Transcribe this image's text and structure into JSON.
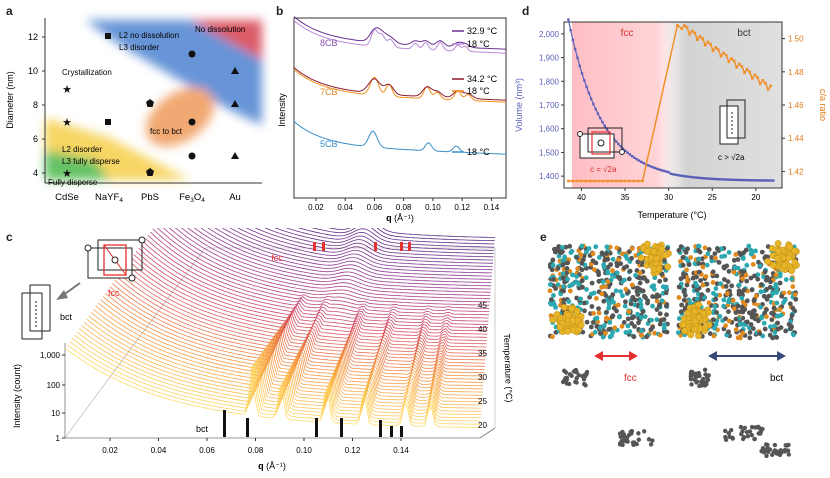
{
  "panel_a": {
    "label": "a",
    "ylabel": "Diameter (nm)",
    "yticks": [
      "12",
      "10",
      "8",
      "6",
      "4"
    ],
    "xticks": [
      "CdSe",
      "NaYF",
      "PbS",
      "Fe",
      "Au"
    ],
    "xtick_sub": {
      "NaYF": "4",
      "Fe": "3"
    },
    "fe_suffix": "O",
    "fe_suffix_sub": "4",
    "regions": {
      "no_dissolution": "No dissolution",
      "l2_no_dissolution_1": "L2 no dissolution",
      "l2_no_dissolution_2": "L3 disorder",
      "crystallization": "Crystallization",
      "fcc_to_bct": "fcc to bct",
      "l2_disorder_1": "L2 disorder",
      "l2_disorder_2": "L3 fully disperse",
      "fully_disperse": "Fully disperse"
    }
  },
  "panel_b": {
    "label": "b",
    "ylabel": "Intensity",
    "xlabel_bold": "q",
    "xlabel_rest": " (Å⁻¹)",
    "xticks": [
      "0.02",
      "0.04",
      "0.06",
      "0.08",
      "0.10",
      "0.12",
      "0.14"
    ],
    "samples": [
      "8CB",
      "7CB",
      "5CB"
    ],
    "legend": [
      "32.9 °C",
      "18 °C",
      "34.2 °C",
      "18 °C",
      "18 °C"
    ]
  },
  "panel_c": {
    "label": "c",
    "fcc_top": "fcc",
    "fcc_label": "fcc",
    "bct_label": "bct",
    "bct_bottom": "bct",
    "ylabel": "Intensity (count)",
    "yticks": [
      "1,000",
      "100",
      "10",
      "1"
    ],
    "xticks": [
      "0.02",
      "0.04",
      "0.06",
      "0.08",
      "0.10",
      "0.12",
      "0.14"
    ],
    "xlabel_bold": "q",
    "xlabel_rest": " (Å⁻¹)",
    "zlabel": "Temperature (°C)",
    "zticks": [
      "45",
      "40",
      "35",
      "30",
      "25",
      "20"
    ]
  },
  "panel_d": {
    "label": "d",
    "ylabel": "Volume (nm³)",
    "y2label": "c/a ratio",
    "yticks": [
      "2,000",
      "1,900",
      "1,800",
      "1,700",
      "1,600",
      "1,500",
      "1,400"
    ],
    "y2ticks": [
      "1.50",
      "1.48",
      "1.46",
      "1.44",
      "1.42"
    ],
    "xticks": [
      "40",
      "35",
      "30",
      "25",
      "20"
    ],
    "xlabel": "Temperature (°C)",
    "fcc": "fcc",
    "bct": "bct",
    "fcc_eq": "c = √2a",
    "bct_eq": "c > √2a"
  },
  "panel_e": {
    "label": "e",
    "fcc": "fcc",
    "bct": "bct"
  },
  "colors": {
    "purple": "#8a4fb0",
    "darkred": "#8b1a2b",
    "orange": "#f0901e",
    "blue": "#3a8fc8",
    "volume": "#5a5fb8",
    "ratio": "#f0902a",
    "fcc_red": "#e53030",
    "bct_navy": "#3a4a78"
  }
}
